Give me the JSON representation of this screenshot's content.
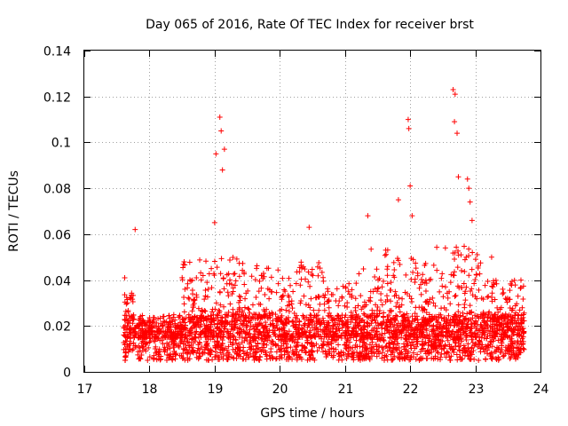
{
  "chart_data": {
    "type": "scatter",
    "title": "Day 065 of 2016, Rate Of TEC Index for receiver brst",
    "xlabel": "GPS time / hours",
    "ylabel": "ROTI / TECUs",
    "xlim": [
      17,
      24
    ],
    "ylim": [
      0,
      0.14
    ],
    "xticks": [
      "17",
      "18",
      "19",
      "20",
      "21",
      "22",
      "23",
      "24"
    ],
    "xtick_values": [
      17,
      18,
      19,
      20,
      21,
      22,
      23,
      24
    ],
    "yticks": [
      "0",
      "0.02",
      "0.04",
      "0.06",
      "0.08",
      "0.1",
      "0.12",
      "0.14"
    ],
    "ytick_values": [
      0,
      0.02,
      0.04,
      0.06,
      0.08,
      0.1,
      0.12,
      0.14
    ],
    "grid": true,
    "marker": "+",
    "color": "#ff0000",
    "series": [
      {
        "name": "ROTI",
        "x_range": [
          17.6,
          23.75
        ],
        "baseline_band": [
          0.005,
          0.025
        ],
        "notable_points": [
          {
            "x": 17.78,
            "y": 0.062
          },
          {
            "x": 17.62,
            "y": 0.041
          },
          {
            "x": 19.02,
            "y": 0.095
          },
          {
            "x": 19.08,
            "y": 0.111
          },
          {
            "x": 19.1,
            "y": 0.105
          },
          {
            "x": 19.15,
            "y": 0.097
          },
          {
            "x": 19.12,
            "y": 0.088
          },
          {
            "x": 19.0,
            "y": 0.065
          },
          {
            "x": 20.45,
            "y": 0.063
          },
          {
            "x": 21.35,
            "y": 0.068
          },
          {
            "x": 21.82,
            "y": 0.075
          },
          {
            "x": 21.97,
            "y": 0.11
          },
          {
            "x": 21.98,
            "y": 0.106
          },
          {
            "x": 22.0,
            "y": 0.081
          },
          {
            "x": 22.03,
            "y": 0.068
          },
          {
            "x": 22.66,
            "y": 0.123
          },
          {
            "x": 22.69,
            "y": 0.121
          },
          {
            "x": 22.68,
            "y": 0.109
          },
          {
            "x": 22.72,
            "y": 0.104
          },
          {
            "x": 22.74,
            "y": 0.085
          },
          {
            "x": 22.88,
            "y": 0.084
          },
          {
            "x": 22.9,
            "y": 0.08
          },
          {
            "x": 22.92,
            "y": 0.074
          },
          {
            "x": 22.95,
            "y": 0.066
          },
          {
            "x": 23.25,
            "y": 0.05
          },
          {
            "x": 23.7,
            "y": 0.04
          }
        ]
      }
    ]
  }
}
